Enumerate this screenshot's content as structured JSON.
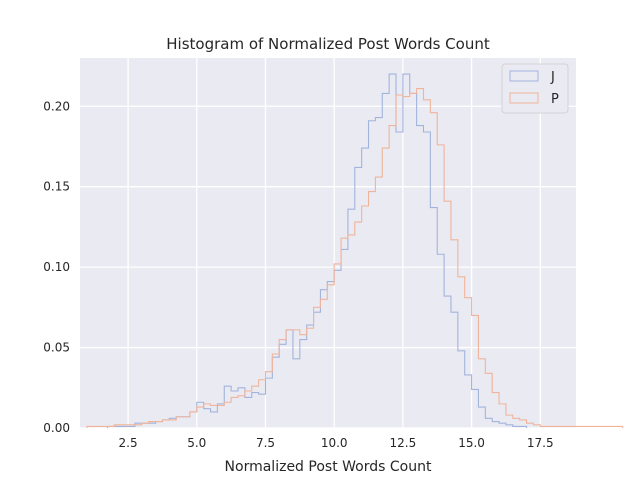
{
  "chart_data": {
    "type": "histogram",
    "title": "Histogram of Normalized Post Words Count",
    "xlabel": "Normalized Post Words Count",
    "ylabel": "",
    "xlim": [
      0.75,
      18.8
    ],
    "ylim": [
      0,
      0.23
    ],
    "xticks": [
      2.5,
      5.0,
      7.5,
      10.0,
      12.5,
      15.0,
      17.5
    ],
    "xtick_labels": [
      "2.5",
      "5.0",
      "7.5",
      "10.0",
      "12.5",
      "15.0",
      "17.5"
    ],
    "yticks": [
      0,
      0.05,
      0.1,
      0.15,
      0.2
    ],
    "ytick_labels": [
      "0.00",
      "0.05",
      "0.10",
      "0.15",
      "0.20"
    ],
    "grid": true,
    "legend_position": "top-right",
    "bin_width": 0.25,
    "series": [
      {
        "name": "J",
        "color": "#a2b4dc",
        "x_start": 1.75,
        "values": [
          0.001,
          0.001,
          0.001,
          0.001,
          0.003,
          0.003,
          0.003,
          0.004,
          0.005,
          0.006,
          0.007,
          0.007,
          0.01,
          0.016,
          0.012,
          0.01,
          0.015,
          0.026,
          0.023,
          0.025,
          0.019,
          0.022,
          0.021,
          0.031,
          0.044,
          0.052,
          0.061,
          0.043,
          0.055,
          0.064,
          0.072,
          0.086,
          0.091,
          0.098,
          0.111,
          0.136,
          0.162,
          0.174,
          0.191,
          0.193,
          0.208,
          0.22,
          0.184,
          0.22,
          0.208,
          0.188,
          0.184,
          0.137,
          0.108,
          0.082,
          0.072,
          0.048,
          0.033,
          0.024,
          0.013,
          0.006,
          0.004,
          0.003,
          0.002,
          0.001,
          0.001
        ]
      },
      {
        "name": "P",
        "color": "#f0b49b",
        "x_start": 1.0,
        "values": [
          0.001,
          0.001,
          0.001,
          0.001,
          0.002,
          0.002,
          0.002,
          0.002,
          0.003,
          0.004,
          0.004,
          0.005,
          0.005,
          0.007,
          0.007,
          0.01,
          0.013,
          0.015,
          0.014,
          0.014,
          0.016,
          0.019,
          0.02,
          0.023,
          0.026,
          0.03,
          0.035,
          0.046,
          0.055,
          0.061,
          0.061,
          0.058,
          0.062,
          0.075,
          0.08,
          0.089,
          0.102,
          0.118,
          0.12,
          0.128,
          0.138,
          0.147,
          0.156,
          0.174,
          0.188,
          0.207,
          0.206,
          0.208,
          0.211,
          0.204,
          0.196,
          0.176,
          0.141,
          0.117,
          0.094,
          0.081,
          0.07,
          0.043,
          0.034,
          0.022,
          0.015,
          0.008,
          0.006,
          0.005,
          0.003,
          0.002,
          0.001,
          0.001,
          0.001,
          0.001,
          0.001,
          0.001,
          0.001,
          0.001,
          0.001,
          0.001,
          0.001,
          0.001
        ]
      }
    ]
  }
}
